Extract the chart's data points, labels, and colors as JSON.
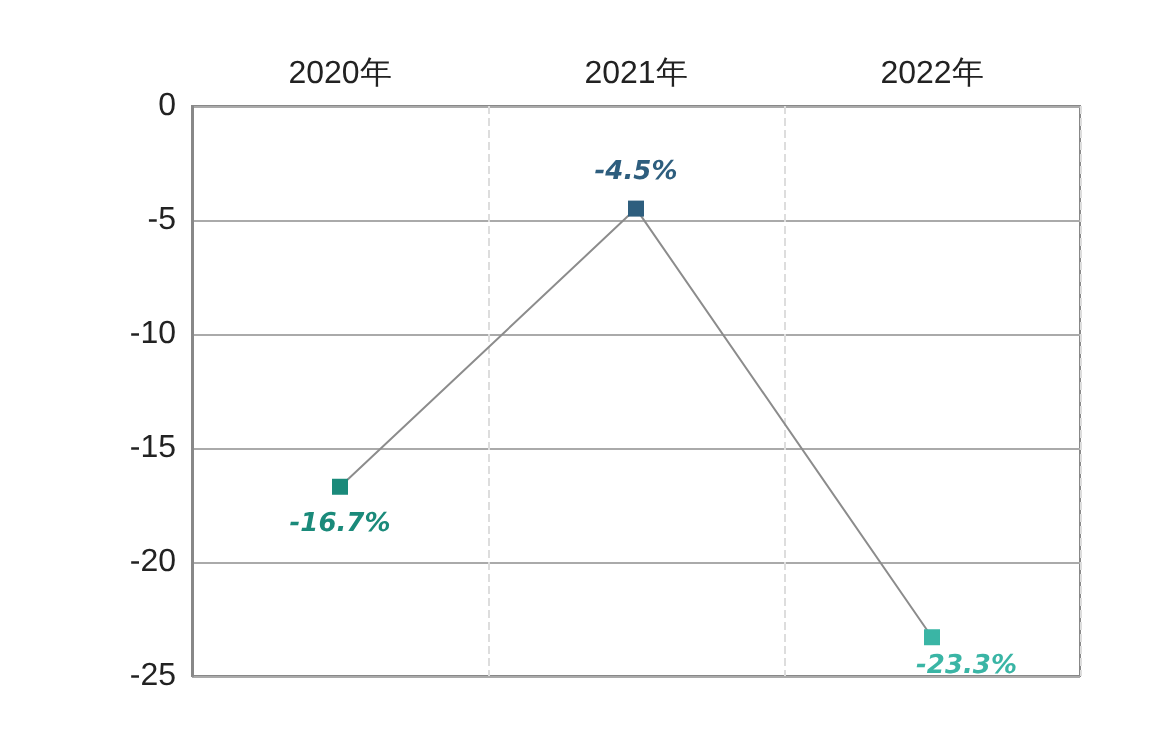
{
  "chart_data": {
    "type": "line",
    "categories": [
      "2020年",
      "2021年",
      "2022年"
    ],
    "series": [
      {
        "color": "#8c8c8c",
        "colors": [
          "#1a8a7a",
          "#2e5e7e",
          "#3ab5a5"
        ],
        "values": [
          -16.7,
          -4.5,
          -23.3
        ],
        "value_labels": [
          "-16.7%",
          "-4.5%",
          "-23.3%"
        ]
      }
    ],
    "ylim": [
      -25,
      0
    ],
    "yticks": [
      0,
      -5,
      -10,
      -15,
      -20,
      -25
    ],
    "grid": true,
    "marker": "square",
    "line_style": "solid"
  }
}
